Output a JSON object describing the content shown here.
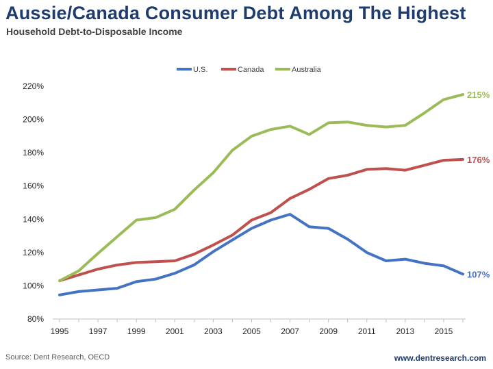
{
  "chart_data": {
    "type": "line",
    "title": "Aussie/Canada Consumer Debt Among The Highest",
    "subtitle": "Household Debt-to-Disposable Income",
    "x": [
      1995,
      1996,
      1997,
      1998,
      1999,
      2000,
      2001,
      2002,
      2003,
      2004,
      2005,
      2006,
      2007,
      2008,
      2009,
      2010,
      2011,
      2012,
      2013,
      2014,
      2015,
      2016
    ],
    "x_tick_labels": [
      "1995",
      "1997",
      "1999",
      "2001",
      "2003",
      "2005",
      "2007",
      "2009",
      "2011",
      "2013",
      "2015"
    ],
    "y_tick_labels": [
      "80%",
      "100%",
      "120%",
      "140%",
      "160%",
      "180%",
      "200%",
      "220%"
    ],
    "ylim": [
      80,
      220
    ],
    "y_unit": "%",
    "legend_position": "top-center",
    "grid": false,
    "series": [
      {
        "name": "U.S.",
        "color": "#4472c4",
        "values": [
          94.5,
          96.5,
          97.5,
          98.5,
          102.5,
          104,
          107.5,
          112.5,
          120.5,
          127.5,
          134.5,
          139.5,
          143,
          135.5,
          134.5,
          128,
          120,
          115,
          116,
          113.5,
          112,
          107
        ],
        "end_label": "107%"
      },
      {
        "name": "Canada",
        "color": "#c0504d",
        "values": [
          103,
          106.5,
          110,
          112.5,
          114,
          114.5,
          115,
          119,
          124.5,
          130.5,
          139.5,
          144,
          152.5,
          158,
          164.5,
          166.5,
          170,
          170.5,
          169.5,
          172.5,
          175.5,
          176
        ],
        "end_label": "176%"
      },
      {
        "name": "Australia",
        "color": "#9bbb59",
        "values": [
          103,
          109,
          119.5,
          129.5,
          139.5,
          141,
          146,
          157.5,
          168,
          181.5,
          190,
          194,
          196,
          191,
          198,
          198.5,
          196.5,
          195.5,
          196.5,
          204,
          212,
          215
        ],
        "end_label": "215%"
      }
    ]
  },
  "footer": {
    "source": "Source: Dent Research, OECD",
    "site": "www.dentresearch.com"
  }
}
